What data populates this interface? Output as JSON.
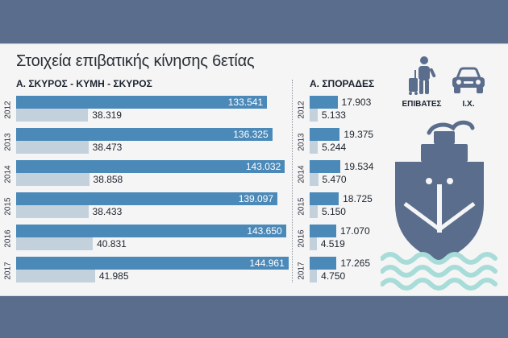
{
  "title": "Στοιχεία επιβατικής κίνησης 6ετίας",
  "legend": {
    "passengers_label": "ΕΠΙΒΑΤΕΣ",
    "cars_label": "Ι.Χ.",
    "passengers_icon": "traveler-with-suitcase-icon",
    "cars_icon": "car-icon",
    "ship_icon": "ship-icon",
    "passengers_color": "#4b89b8",
    "cars_color": "#c3d1dc",
    "icon_color": "#5b6d8c",
    "wave_color": "#a8dcd8"
  },
  "chart_data": [
    {
      "type": "bar",
      "title": "Α. ΣΚΥΡΟΣ - ΚΥΜΗ - ΣΚΥΡΟΣ",
      "categories": [
        "2012",
        "2013",
        "2014",
        "2015",
        "2016",
        "2017"
      ],
      "series": [
        {
          "name": "ΕΠΙΒΑΤΕΣ",
          "values": [
            133541,
            136325,
            143032,
            139097,
            143650,
            144961
          ],
          "labels": [
            "133.541",
            "136.325",
            "143.032",
            "139.097",
            "143.650",
            "144.961"
          ]
        },
        {
          "name": "Ι.Χ.",
          "values": [
            38319,
            38473,
            38858,
            38433,
            40831,
            41985
          ],
          "labels": [
            "38.319",
            "38.473",
            "38.858",
            "38.433",
            "40.831",
            "41.985"
          ]
        }
      ]
    },
    {
      "type": "bar",
      "title": "Α. ΣΠΟΡΑΔΕΣ",
      "categories": [
        "2012",
        "2013",
        "2014",
        "2015",
        "2016",
        "2017"
      ],
      "series": [
        {
          "name": "ΕΠΙΒΑΤΕΣ",
          "values": [
            17903,
            19375,
            19534,
            18725,
            17070,
            17265
          ],
          "labels": [
            "17.903",
            "19.375",
            "19.534",
            "18.725",
            "17.070",
            "17.265"
          ]
        },
        {
          "name": "Ι.Χ.",
          "values": [
            5133,
            5244,
            5470,
            5150,
            4519,
            4750
          ],
          "labels": [
            "5.133",
            "5.244",
            "5.470",
            "5.150",
            "4.519",
            "4.750"
          ]
        }
      ]
    }
  ]
}
